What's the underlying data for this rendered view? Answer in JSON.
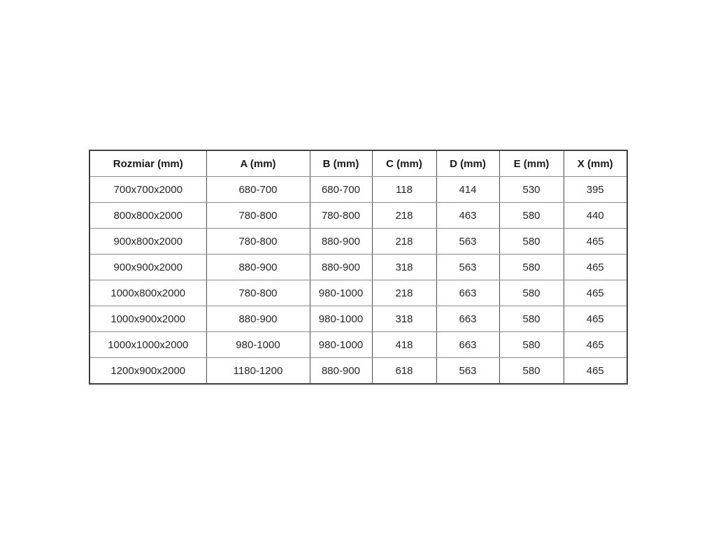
{
  "colors": {
    "background": "#ffffff",
    "border_outer": "#404040",
    "border_inner_vertical": "#4d4d4d",
    "border_inner_horizontal": "#8c8c8c",
    "text": "#262626"
  },
  "table": {
    "columns": [
      "Rozmiar (mm)",
      "A (mm)",
      "B (mm)",
      "C (mm)",
      "D (mm)",
      "E (mm)",
      "X (mm)"
    ],
    "rows": [
      [
        "700x700x2000",
        "680-700",
        "680-700",
        "118",
        "414",
        "530",
        "395"
      ],
      [
        "800x800x2000",
        "780-800",
        "780-800",
        "218",
        "463",
        "580",
        "440"
      ],
      [
        "900x800x2000",
        "780-800",
        "880-900",
        "218",
        "563",
        "580",
        "465"
      ],
      [
        "900x900x2000",
        "880-900",
        "880-900",
        "318",
        "563",
        "580",
        "465"
      ],
      [
        "1000x800x2000",
        "780-800",
        "980-1000",
        "218",
        "663",
        "580",
        "465"
      ],
      [
        "1000x900x2000",
        "880-900",
        "980-1000",
        "318",
        "663",
        "580",
        "465"
      ],
      [
        "1000x1000x2000",
        "980-1000",
        "980-1000",
        "418",
        "663",
        "580",
        "465"
      ],
      [
        "1200x900x2000",
        "1180-1200",
        "880-900",
        "618",
        "563",
        "580",
        "465"
      ]
    ]
  },
  "chart_data": {
    "type": "table",
    "title": "",
    "columns": [
      "Rozmiar (mm)",
      "A (mm)",
      "B (mm)",
      "C (mm)",
      "D (mm)",
      "E (mm)",
      "X (mm)"
    ],
    "rows": [
      [
        "700x700x2000",
        "680-700",
        "680-700",
        "118",
        "414",
        "530",
        "395"
      ],
      [
        "800x800x2000",
        "780-800",
        "780-800",
        "218",
        "463",
        "580",
        "440"
      ],
      [
        "900x800x2000",
        "780-800",
        "880-900",
        "218",
        "563",
        "580",
        "465"
      ],
      [
        "900x900x2000",
        "880-900",
        "880-900",
        "318",
        "563",
        "580",
        "465"
      ],
      [
        "1000x800x2000",
        "780-800",
        "980-1000",
        "218",
        "663",
        "580",
        "465"
      ],
      [
        "1000x900x2000",
        "880-900",
        "980-1000",
        "318",
        "663",
        "580",
        "465"
      ],
      [
        "1000x1000x2000",
        "980-1000",
        "980-1000",
        "418",
        "663",
        "580",
        "465"
      ],
      [
        "1200x900x2000",
        "1180-1200",
        "880-900",
        "618",
        "563",
        "580",
        "465"
      ]
    ]
  }
}
